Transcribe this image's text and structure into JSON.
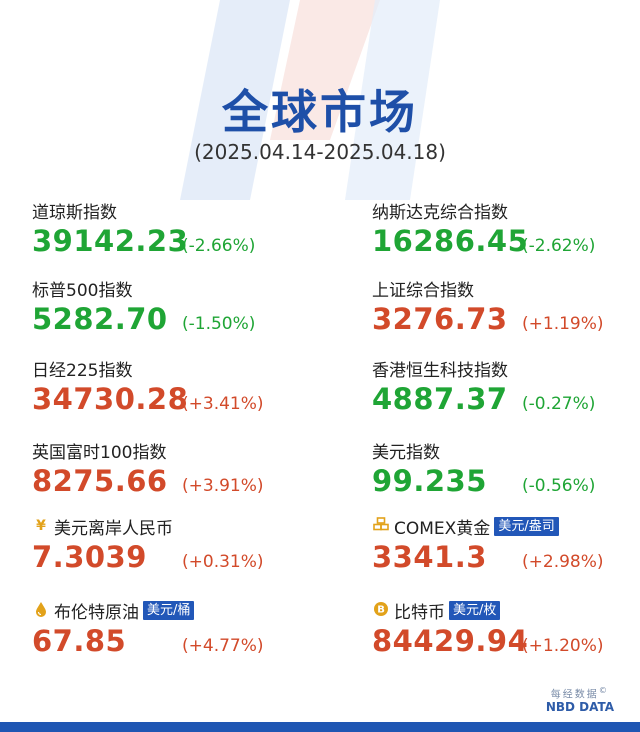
{
  "header": {
    "title": "全球市场",
    "date_range": "(2025.04.14-2025.04.18)"
  },
  "markets": [
    {
      "name": "道琼斯指数",
      "value": "39142.23",
      "change": "(-2.66%)",
      "direction": "down"
    },
    {
      "name": "纳斯达克综合指数",
      "value": "16286.45",
      "change": "(-2.62%)",
      "direction": "down"
    },
    {
      "name": "标普500指数",
      "value": "5282.70",
      "change": "(-1.50%)",
      "direction": "down"
    },
    {
      "name": "上证综合指数",
      "value": "3276.73",
      "change": "(+1.19%)",
      "direction": "up"
    },
    {
      "name": "日经225指数",
      "value": "34730.28",
      "change": "(+3.41%)",
      "direction": "up"
    },
    {
      "name": "香港恒生科技指数",
      "value": "4887.37",
      "change": "(-0.27%)",
      "direction": "down"
    },
    {
      "name": "英国富时100指数",
      "value": "8275.66",
      "change": "(+3.91%)",
      "direction": "up"
    },
    {
      "name": "美元指数",
      "value": "99.235",
      "change": "(-0.56%)",
      "direction": "down"
    },
    {
      "name": "美元离岸人民币",
      "value": "7.3039",
      "change": "(+0.31%)",
      "direction": "up",
      "icon": "yen-icon"
    },
    {
      "name": "COMEX黄金",
      "unit": "美元/盎司",
      "value": "3341.3",
      "change": "(+2.98%)",
      "direction": "up",
      "icon": "gold-bars-icon"
    },
    {
      "name": "布伦特原油",
      "unit": "美元/桶",
      "value": "67.85",
      "change": "(+4.77%)",
      "direction": "up",
      "icon": "oil-drop-icon"
    },
    {
      "name": "比特币",
      "unit": "美元/枚",
      "value": "84429.94",
      "change": "(+1.20%)",
      "direction": "up",
      "icon": "bitcoin-icon"
    }
  ],
  "colors": {
    "down": "#1fa535",
    "up": "#d24a2a",
    "title": "#1e4fa8",
    "badge": "#2257b8"
  },
  "brand": {
    "cn": "每经数据",
    "en": "NBD DATA",
    "mark": "©"
  }
}
